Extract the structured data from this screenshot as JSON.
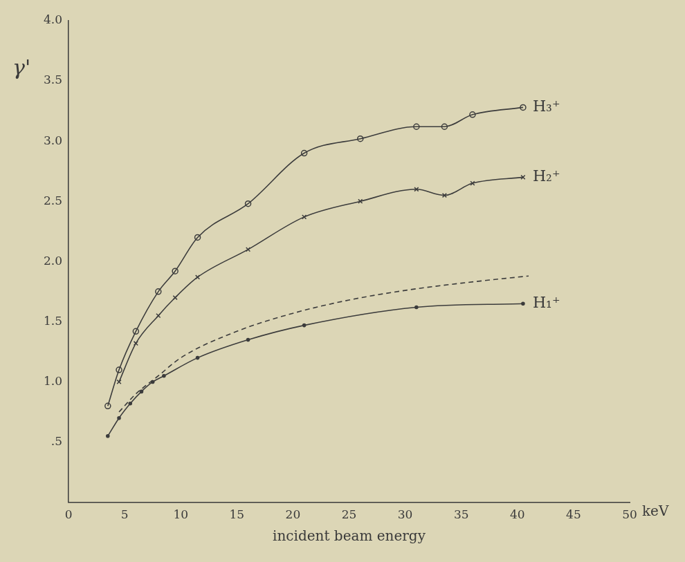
{
  "chart_data": {
    "type": "line",
    "xlabel": "incident beam energy",
    "ylabel": "γ'",
    "annotations": [
      "keV"
    ],
    "xlim": [
      0,
      50
    ],
    "xticks": [
      0,
      5,
      10,
      15,
      20,
      25,
      30,
      35,
      40,
      45,
      50
    ],
    "ylim": [
      0,
      4
    ],
    "yticks": [
      {
        "value": 0.5,
        "label": ".5"
      },
      {
        "value": 1,
        "label": "1.0"
      },
      {
        "value": 1.5,
        "label": "1.5"
      },
      {
        "value": 2,
        "label": "2.0"
      },
      {
        "value": 2.5,
        "label": "2.5"
      },
      {
        "value": 3,
        "label": "3.0"
      },
      {
        "value": 3.5,
        "label": "3.5"
      },
      {
        "value": 4,
        "label": "4.0"
      }
    ],
    "grid": false,
    "series": [
      {
        "name": "H₃⁺",
        "color": "#3c3c3c",
        "marker": "circle",
        "line_style": "solid",
        "x": [
          3.5,
          4.5,
          6,
          8,
          9.5,
          11.5,
          16,
          21,
          26,
          31,
          33.5,
          36,
          40.5
        ],
        "values": [
          0.8,
          1.1,
          1.42,
          1.75,
          1.92,
          2.2,
          2.48,
          2.9,
          3.02,
          3.12,
          3.12,
          3.22,
          3.28
        ]
      },
      {
        "name": "H₂⁺",
        "color": "#3c3c3c",
        "marker": "cross",
        "line_style": "solid",
        "x": [
          4.5,
          6,
          8,
          9.5,
          11.5,
          16,
          21,
          26,
          31,
          33.5,
          36,
          40.5
        ],
        "values": [
          1.0,
          1.32,
          1.55,
          1.7,
          1.87,
          2.1,
          2.37,
          2.5,
          2.6,
          2.55,
          2.65,
          2.7
        ]
      },
      {
        "name": "H₁⁺",
        "color": "#3c3c3c",
        "marker": "dot",
        "line_style": "solid",
        "x": [
          3.5,
          4.5,
          5.5,
          6.5,
          7.5,
          8.5,
          11.5,
          16,
          21,
          31,
          40.5
        ],
        "values": [
          0.55,
          0.7,
          0.82,
          0.92,
          1.0,
          1.05,
          1.2,
          1.35,
          1.47,
          1.62,
          1.65
        ]
      },
      {
        "color": "#3c3c3c",
        "marker": "none",
        "line_style": "dashed",
        "x": [
          4.5,
          6,
          8,
          10,
          15,
          20,
          25,
          30,
          35,
          41
        ],
        "values": [
          0.75,
          0.9,
          1.05,
          1.2,
          1.42,
          1.57,
          1.68,
          1.76,
          1.82,
          1.88
        ]
      }
    ]
  }
}
